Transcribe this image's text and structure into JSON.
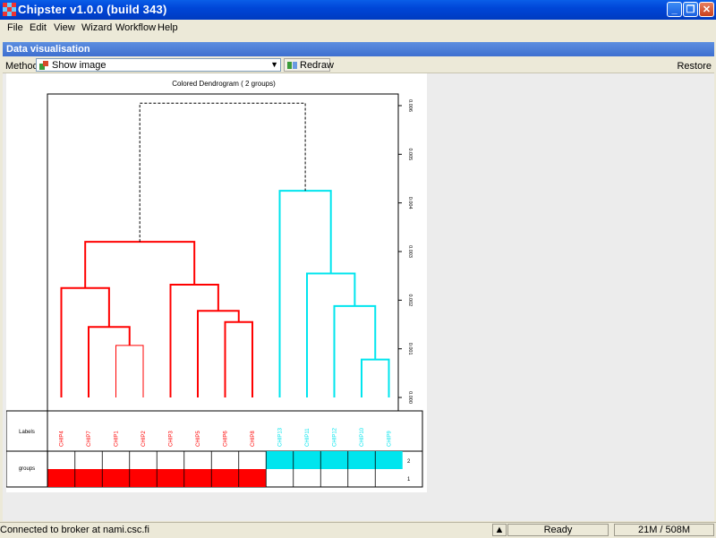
{
  "window": {
    "title": "Chipster v1.0.0 (build 343)"
  },
  "menu": [
    "File",
    "Edit",
    "View",
    "Wizard",
    "Workflow",
    "Help"
  ],
  "panel": {
    "title": "Data visualisation"
  },
  "toolbar": {
    "method_label": "Method:",
    "method_value": "Show image",
    "redraw_label": "Redraw",
    "restore_label": "Restore"
  },
  "status": {
    "connection": "Connected to broker at nami.csc.fi",
    "state": "Ready",
    "memory": "21M / 508M"
  },
  "colors": {
    "group1": "#ff0000",
    "group2": "#00e5ee",
    "titlebar": "#0046d8"
  },
  "chart_data": {
    "type": "dendrogram",
    "title": "Colored Dendrogram ( 2 groups)",
    "ylim": [
      0,
      0.006
    ],
    "yticks": [
      "0.000",
      "0.001",
      "0.002",
      "0.003",
      "0.004",
      "0.005",
      "0.006"
    ],
    "side_labels": {
      "labels_row": "Labels",
      "groups_row": "groups"
    },
    "group_ticks": [
      "2",
      "1"
    ],
    "leaves": [
      {
        "label": "CHIP4",
        "group": 1
      },
      {
        "label": "CHIP7",
        "group": 1
      },
      {
        "label": "CHIP1",
        "group": 1
      },
      {
        "label": "CHIP2",
        "group": 1
      },
      {
        "label": "CHIP3",
        "group": 1
      },
      {
        "label": "CHIP5",
        "group": 1
      },
      {
        "label": "CHIP6",
        "group": 1
      },
      {
        "label": "CHIP8",
        "group": 1
      },
      {
        "label": "CHIP13",
        "group": 2
      },
      {
        "label": "CHIP11",
        "group": 2
      },
      {
        "label": "CHIP12",
        "group": 2
      },
      {
        "label": "CHIP10",
        "group": 2
      },
      {
        "label": "CHIP9",
        "group": 2
      }
    ],
    "merges": [
      {
        "left": 2,
        "right": 3,
        "height": 0.00107,
        "group": 1,
        "thin": true
      },
      {
        "left": 1,
        "right": "m0",
        "height": 0.00145,
        "group": 1
      },
      {
        "left": 0,
        "right": "m1",
        "height": 0.00225,
        "group": 1
      },
      {
        "left": 6,
        "right": 7,
        "height": 0.00155,
        "group": 1
      },
      {
        "left": 5,
        "right": "m3",
        "height": 0.00178,
        "group": 1
      },
      {
        "left": 4,
        "right": "m4",
        "height": 0.00232,
        "group": 1
      },
      {
        "left": "m2",
        "right": "m5",
        "height": 0.0032,
        "group": 1
      },
      {
        "left": 11,
        "right": 12,
        "height": 0.00078,
        "group": 2
      },
      {
        "left": 10,
        "right": "m7",
        "height": 0.00188,
        "group": 2
      },
      {
        "left": 9,
        "right": "m8",
        "height": 0.00255,
        "group": 2
      },
      {
        "left": 8,
        "right": "m9",
        "height": 0.00425,
        "group": 2
      },
      {
        "left": "m6",
        "right": "m10",
        "height": 0.00605,
        "group": 0,
        "dashed": true
      }
    ]
  }
}
